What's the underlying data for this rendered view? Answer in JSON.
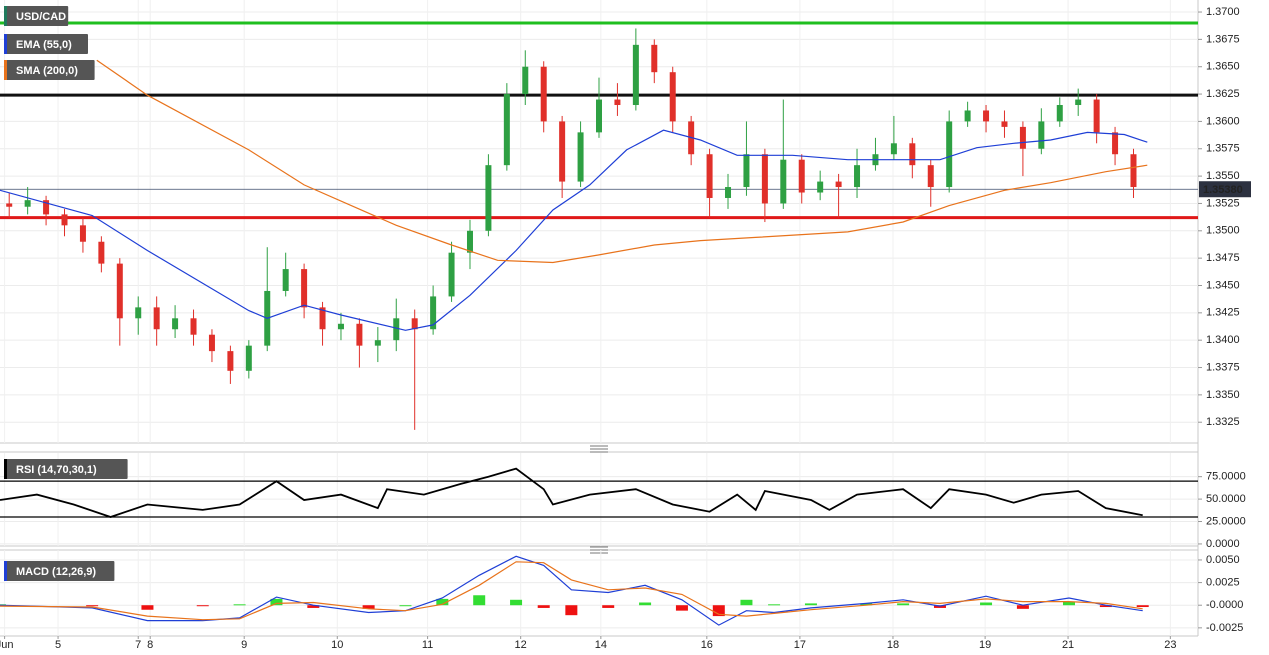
{
  "chart_data": [
    {
      "type": "candlestick",
      "name": "USD/CAD",
      "name_color": "#1f7a5c",
      "up_color": "#2ea043",
      "down_color": "#e0302a",
      "x": [
        1,
        3,
        5,
        7,
        9,
        11,
        13,
        15,
        17,
        19,
        21,
        23,
        25,
        27,
        29,
        31,
        33,
        35,
        37,
        39,
        41,
        43,
        45,
        47,
        49,
        51,
        53,
        55,
        57,
        59,
        61,
        63,
        65,
        67,
        69,
        71,
        73,
        75,
        77,
        79,
        81,
        83,
        85,
        87,
        89,
        91,
        93,
        95,
        97,
        99,
        101,
        103,
        105,
        107,
        109,
        111,
        113,
        115,
        117,
        119,
        121,
        123
      ],
      "open": [
        1.3525,
        1.3522,
        1.3528,
        1.3515,
        1.3505,
        1.349,
        1.347,
        1.342,
        1.343,
        1.341,
        1.342,
        1.3405,
        1.339,
        1.3372,
        1.3395,
        1.3445,
        1.3465,
        1.343,
        1.341,
        1.3415,
        1.3395,
        1.34,
        1.342,
        1.341,
        1.344,
        1.348,
        1.35,
        1.356,
        1.3625,
        1.365,
        1.36,
        1.3545,
        1.359,
        1.362,
        1.3615,
        1.367,
        1.3645,
        1.36,
        1.357,
        1.353,
        1.354,
        1.357,
        1.3525,
        1.3565,
        1.3535,
        1.3545,
        1.354,
        1.356,
        1.357,
        1.358,
        1.356,
        1.354,
        1.36,
        1.361,
        1.36,
        1.3595,
        1.3575,
        1.36,
        1.3615,
        1.362,
        1.359,
        1.357
      ],
      "high": [
        1.3535,
        1.354,
        1.3532,
        1.352,
        1.3512,
        1.3495,
        1.3475,
        1.344,
        1.344,
        1.3432,
        1.3428,
        1.341,
        1.3395,
        1.34,
        1.3485,
        1.348,
        1.347,
        1.3435,
        1.3425,
        1.342,
        1.3412,
        1.3438,
        1.3428,
        1.345,
        1.349,
        1.351,
        1.357,
        1.3635,
        1.3665,
        1.3655,
        1.3605,
        1.36,
        1.364,
        1.3635,
        1.3685,
        1.3675,
        1.365,
        1.3605,
        1.3575,
        1.3552,
        1.36,
        1.3575,
        1.362,
        1.357,
        1.3555,
        1.3552,
        1.3575,
        1.3585,
        1.3605,
        1.3585,
        1.3565,
        1.361,
        1.3618,
        1.3615,
        1.361,
        1.36,
        1.3612,
        1.3622,
        1.363,
        1.3625,
        1.3595,
        1.3575
      ],
      "low": [
        1.3512,
        1.3515,
        1.3505,
        1.3495,
        1.348,
        1.3462,
        1.3395,
        1.3405,
        1.3395,
        1.3402,
        1.3395,
        1.338,
        1.336,
        1.3365,
        1.339,
        1.344,
        1.342,
        1.3395,
        1.34,
        1.3375,
        1.338,
        1.339,
        1.3318,
        1.3405,
        1.3435,
        1.3465,
        1.3495,
        1.3555,
        1.3615,
        1.359,
        1.353,
        1.354,
        1.3585,
        1.3605,
        1.361,
        1.3635,
        1.359,
        1.356,
        1.3512,
        1.352,
        1.3532,
        1.3508,
        1.352,
        1.3525,
        1.3528,
        1.3512,
        1.353,
        1.3555,
        1.3565,
        1.3548,
        1.3522,
        1.3535,
        1.3595,
        1.359,
        1.3585,
        1.355,
        1.357,
        1.3595,
        1.3605,
        1.358,
        1.356,
        1.353
      ],
      "close": [
        1.3522,
        1.3528,
        1.3515,
        1.3505,
        1.349,
        1.347,
        1.342,
        1.343,
        1.341,
        1.342,
        1.3405,
        1.339,
        1.3372,
        1.3395,
        1.3445,
        1.3465,
        1.343,
        1.341,
        1.3415,
        1.3395,
        1.34,
        1.342,
        1.341,
        1.344,
        1.348,
        1.35,
        1.356,
        1.3625,
        1.365,
        1.36,
        1.3545,
        1.359,
        1.362,
        1.3615,
        1.367,
        1.3645,
        1.36,
        1.357,
        1.353,
        1.354,
        1.357,
        1.3525,
        1.3565,
        1.3535,
        1.3545,
        1.354,
        1.356,
        1.357,
        1.358,
        1.356,
        1.354,
        1.36,
        1.361,
        1.36,
        1.3595,
        1.3575,
        1.36,
        1.3615,
        1.362,
        1.359,
        1.357,
        1.354
      ],
      "series": [
        {
          "name": "EMA (55,0)",
          "color": "#1f3fd6",
          "x": [
            0,
            10,
            16,
            27,
            29,
            33,
            37,
            44,
            47,
            51,
            56,
            60,
            64,
            68,
            72,
            76,
            80,
            86,
            92,
            98,
            102,
            106,
            110,
            114,
            118,
            122,
            124.5
          ],
          "values": [
            1.3537,
            1.3514,
            1.3482,
            1.3427,
            1.342,
            1.3432,
            1.3423,
            1.3409,
            1.3414,
            1.3441,
            1.3482,
            1.3519,
            1.3542,
            1.3574,
            1.3592,
            1.3583,
            1.3569,
            1.3569,
            1.3565,
            1.3565,
            1.3565,
            1.3576,
            1.358,
            1.3583,
            1.359,
            1.3588,
            1.3581
          ]
        },
        {
          "name": "SMA (200,0)",
          "color": "#e8731c",
          "x": [
            10.5,
            16,
            27,
            33,
            43,
            49,
            54,
            60,
            65,
            71,
            76,
            82,
            92,
            98,
            103,
            109,
            114,
            120,
            124.5
          ],
          "values": [
            1.3656,
            1.3624,
            1.3574,
            1.3542,
            1.3505,
            1.3487,
            1.3473,
            1.3471,
            1.3478,
            1.3487,
            1.3491,
            1.3494,
            1.3499,
            1.3508,
            1.3523,
            1.3537,
            1.3544,
            1.3554,
            1.356
          ]
        }
      ],
      "levels": [
        {
          "value": 1.369,
          "color": "#1fbf1f"
        },
        {
          "value": 1.3624,
          "color": "#111111"
        },
        {
          "value": 1.3512,
          "color": "#e01818"
        }
      ],
      "last_price": {
        "value": 1.3538,
        "label": "1.35380"
      },
      "xlim": [
        0,
        130
      ],
      "ylim": [
        1.3306,
        1.3711
      ],
      "grid": true,
      "yticks": [
        {
          "value": 1.37,
          "label": "1.3700"
        },
        1.3675,
        {
          "value": 1.365,
          "label": "1.3650"
        },
        1.3625,
        {
          "value": 1.36,
          "label": "1.3600"
        },
        1.3575,
        {
          "value": 1.355,
          "label": "1.3550"
        },
        1.3525,
        {
          "value": 1.35,
          "label": "1.3500"
        },
        1.3475,
        {
          "value": 1.345,
          "label": "1.3450"
        },
        1.3425,
        {
          "value": 1.34,
          "label": "1.3400"
        },
        1.3375,
        {
          "value": 1.335,
          "label": "1.3350"
        },
        1.3325
      ]
    },
    {
      "type": "line",
      "series": [
        {
          "name": "RSI (14,70,30,1)",
          "color": "#000000",
          "x": [
            0,
            4,
            8,
            12,
            16,
            22,
            26,
            30,
            33,
            37,
            41,
            42,
            46,
            50,
            53,
            56,
            59,
            60,
            64,
            69,
            73,
            77,
            80,
            82,
            83,
            88,
            90,
            93,
            98,
            101,
            103,
            107,
            110,
            113,
            117,
            120,
            124
          ],
          "values": [
            49,
            55,
            44,
            30,
            44,
            38,
            44,
            70,
            49,
            55,
            40,
            61,
            55,
            67,
            75,
            84,
            61,
            44,
            55,
            61,
            44,
            36,
            55,
            38,
            59,
            49,
            38,
            55,
            61,
            40,
            61,
            55,
            46,
            55,
            59,
            40,
            32
          ]
        }
      ],
      "levels": [
        {
          "value": 70,
          "color": "#000000"
        },
        {
          "value": 30,
          "color": "#000000"
        }
      ],
      "xlim": [
        0,
        130
      ],
      "ylim": [
        -2.3,
        101.4
      ],
      "grid": true,
      "yticks": [
        {
          "value": 75,
          "label": "75.0000"
        },
        {
          "value": 50,
          "label": "50.0000"
        },
        {
          "value": 25,
          "label": "25.0000"
        },
        {
          "value": 0,
          "label": "0.0000"
        }
      ]
    },
    {
      "type": "macd",
      "series": [
        {
          "name": "MACD (12,26,9)",
          "color": "#1f3fd6",
          "x": [
            0,
            10,
            16,
            22,
            26,
            30,
            34,
            40,
            44,
            48,
            52,
            56,
            59,
            62,
            66,
            70,
            74,
            78,
            81,
            84,
            88,
            94,
            98,
            102,
            107,
            111,
            116,
            120,
            124
          ],
          "values": [
            0,
            -0.0003,
            -0.0017,
            -0.0017,
            -0.0014,
            0.0009,
            0,
            -0.0008,
            -0.0006,
            0.0008,
            0.0033,
            0.0054,
            0.0044,
            0.0017,
            0.0014,
            0.0022,
            0.0006,
            -0.0022,
            -0.0006,
            -0.0008,
            -0.0003,
            0.0002,
            0.0006,
            -0.0001,
            0.001,
            0,
            0.0008,
            0,
            -0.0006
          ]
        },
        {
          "color": "#e8731c",
          "x": [
            0,
            10,
            16,
            22,
            26,
            30,
            34,
            40,
            44,
            48,
            52,
            56,
            59,
            62,
            66,
            70,
            74,
            78,
            81,
            84,
            88,
            94,
            98,
            102,
            107,
            111,
            116,
            120,
            124
          ],
          "values": [
            -0.0001,
            -0.0002,
            -0.0012,
            -0.0016,
            -0.0015,
            0.0002,
            0.0003,
            -0.0004,
            -0.0006,
            0.0001,
            0.0022,
            0.0048,
            0.0047,
            0.0028,
            0.0017,
            0.0019,
            0.0012,
            -0.001,
            -0.0012,
            -0.0009,
            -0.0005,
            0,
            0.0004,
            0.0002,
            0.0007,
            0.0004,
            0.0004,
            0.0002,
            -0.0004
          ]
        }
      ],
      "histogram": {
        "up_color": "#33dd33",
        "down_color": "#ee1111",
        "x": [
          0,
          10,
          16,
          22,
          26,
          30,
          34,
          40,
          44,
          48,
          52,
          56,
          59,
          62,
          66,
          70,
          74,
          78,
          81,
          84,
          88,
          94,
          98,
          102,
          107,
          111,
          116,
          120,
          124
        ],
        "values": [
          0.0001,
          -0.0001,
          -0.0005,
          -0.0001,
          0.0001,
          0.0007,
          -0.0003,
          -0.0004,
          0,
          0.0007,
          0.0011,
          0.0006,
          -0.0003,
          -0.0011,
          -0.0003,
          0.0003,
          -0.0006,
          -0.0012,
          0.0006,
          0.0001,
          0.0002,
          0.0002,
          0.0002,
          -0.0003,
          0.0003,
          -0.0004,
          0.0004,
          -0.0002,
          -0.0002
        ]
      },
      "xlim": [
        0,
        130
      ],
      "ylim": [
        -0.0034,
        0.0061
      ],
      "grid": true,
      "yticks": [
        {
          "value": 0.005,
          "label": "0.0050"
        },
        {
          "value": 0.0025,
          "label": "0.0025"
        },
        {
          "value": 0,
          "label": "-0.0000"
        },
        {
          "value": -0.0025,
          "label": "-0.0025"
        }
      ],
      "xticks": [
        {
          "value": 0.5,
          "label": "Jun"
        },
        {
          "value": 6.3,
          "label": "5"
        },
        {
          "value": 15,
          "label": "7"
        },
        {
          "value": 16.3,
          "label": "8"
        },
        {
          "value": 26.5,
          "label": "9"
        },
        {
          "value": 36.6,
          "label": "10"
        },
        {
          "value": 46.4,
          "label": "11"
        },
        {
          "value": 56.5,
          "label": "12"
        },
        {
          "value": 65.2,
          "label": "14"
        },
        {
          "value": 76.7,
          "label": "16"
        },
        {
          "value": 86.8,
          "label": "17"
        },
        {
          "value": 96.9,
          "label": "18"
        },
        {
          "value": 106.9,
          "label": "19"
        },
        {
          "value": 115.9,
          "label": "21"
        },
        {
          "value": 127,
          "label": "23"
        }
      ]
    }
  ]
}
